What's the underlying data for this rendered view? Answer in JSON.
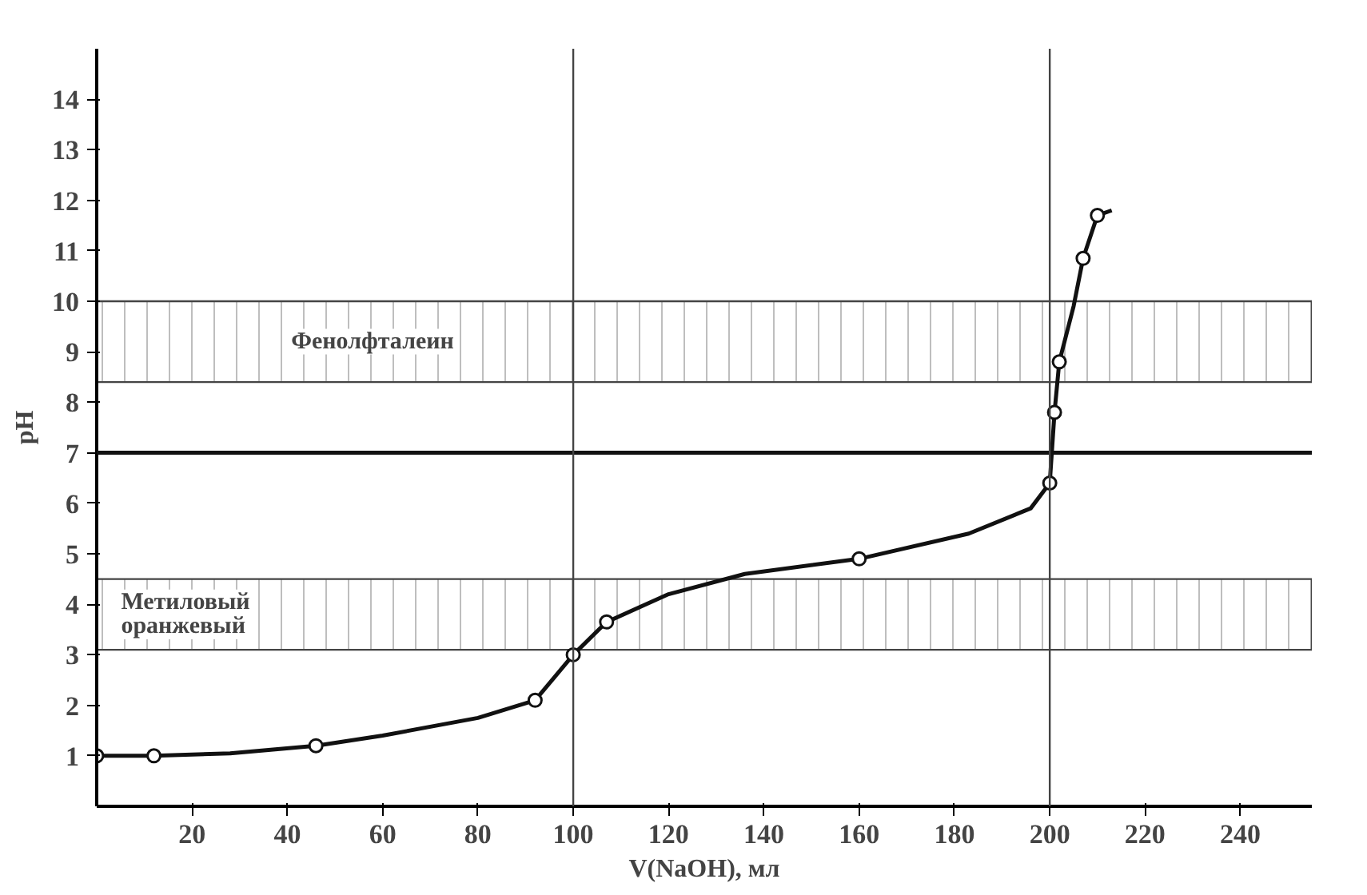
{
  "chart_data": {
    "type": "line",
    "xlabel": "V(NaOH), мл",
    "ylabel": "pH",
    "xlim": [
      0,
      255
    ],
    "ylim": [
      0,
      15
    ],
    "xticks": [
      20,
      40,
      60,
      80,
      100,
      120,
      140,
      160,
      180,
      200,
      220,
      240
    ],
    "yticks": [
      1,
      2,
      3,
      4,
      5,
      6,
      7,
      8,
      9,
      10,
      11,
      12,
      13,
      14
    ],
    "grid": false,
    "series": [
      {
        "color": "#111111",
        "marker": "none",
        "x": [
          0,
          12,
          28,
          46,
          60,
          80,
          92,
          100,
          107,
          120,
          136,
          160,
          183,
          196,
          200,
          201,
          202,
          205,
          207,
          210,
          213
        ],
        "values": [
          1,
          1,
          1.05,
          1.2,
          1.4,
          1.75,
          2.1,
          3.0,
          3.65,
          4.2,
          4.6,
          4.9,
          5.4,
          5.9,
          6.4,
          7.8,
          8.8,
          9.9,
          10.85,
          11.7,
          11.8
        ]
      },
      {
        "type": "scatter",
        "color": "#111111",
        "marker": "circle",
        "x": [
          0,
          12,
          46,
          92,
          100,
          107,
          160,
          200,
          201,
          202,
          207,
          210
        ],
        "values": [
          1,
          1,
          1.2,
          2.1,
          3.0,
          3.65,
          4.9,
          6.4,
          7.8,
          8.8,
          10.85,
          11.7
        ]
      }
    ],
    "ref_lines": [
      {
        "axis": "y",
        "value": 7,
        "color": "#111111"
      },
      {
        "axis": "x",
        "value": 100,
        "color": "#444444"
      },
      {
        "axis": "x",
        "value": 200,
        "color": "#444444"
      }
    ],
    "bands": [
      {
        "axis": "y",
        "from": 8.4,
        "to": 10,
        "label": "Фенолфталеин",
        "color": "#444444"
      },
      {
        "axis": "y",
        "from": 3.1,
        "to": 4.5,
        "label": "Метиловый оранжевый",
        "color": "#444444"
      }
    ]
  }
}
